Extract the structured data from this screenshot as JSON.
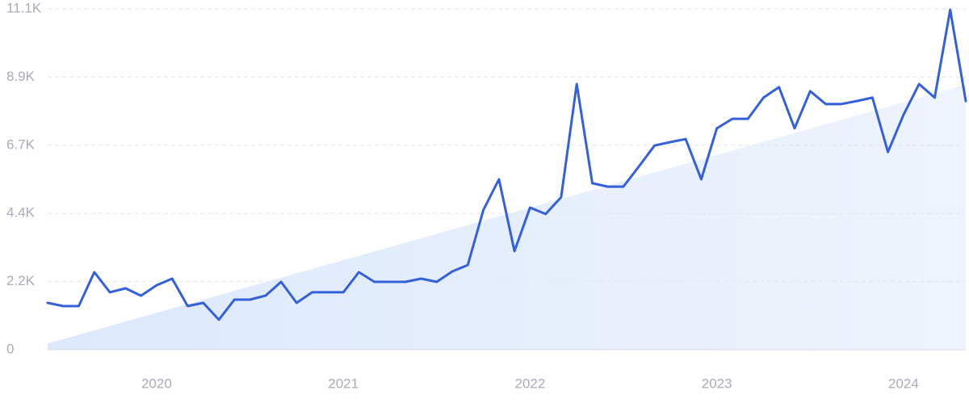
{
  "chart_data": {
    "type": "line",
    "categories": [
      null,
      null,
      null,
      null,
      null,
      null,
      null,
      "2020",
      null,
      null,
      null,
      null,
      null,
      null,
      null,
      null,
      null,
      null,
      null,
      "2021",
      null,
      null,
      null,
      null,
      null,
      null,
      null,
      null,
      null,
      null,
      null,
      "2022",
      null,
      null,
      null,
      null,
      null,
      null,
      null,
      null,
      null,
      null,
      null,
      "2023",
      null,
      null,
      null,
      null,
      null,
      null,
      null,
      null,
      null,
      null,
      null,
      "2024",
      null,
      null,
      null,
      null
    ],
    "values": [
      1525,
      1420,
      1420,
      2525,
      1870,
      2000,
      1760,
      2100,
      2315,
      1420,
      1525,
      975,
      1630,
      1630,
      1760,
      2210,
      1525,
      1870,
      1870,
      1870,
      2525,
      2210,
      2210,
      2210,
      2315,
      2210,
      2550,
      2760,
      4550,
      5550,
      3210,
      4630,
      4420,
      4970,
      8650,
      5420,
      5310,
      5310,
      5970,
      6650,
      6760,
      6860,
      5550,
      7210,
      7520,
      7520,
      8210,
      8550,
      7210,
      8420,
      8000,
      8000,
      8100,
      8210,
      6440,
      7650,
      8650,
      8210,
      11070,
      8100
    ],
    "color": "#3560dc",
    "trend": [
      200,
      8630
    ],
    "trend_color": "#dce9fb",
    "ylim": [
      0,
      11100
    ],
    "yticks": [
      0,
      {
        "value": 2220,
        "label": "2.2K"
      },
      {
        "value": 4440,
        "label": "4.4K"
      },
      {
        "value": 6660,
        "label": "6.7K"
      },
      {
        "value": 8880,
        "label": "8.9K"
      },
      {
        "value": 11100,
        "label": "11.1K"
      }
    ],
    "grid": true
  }
}
